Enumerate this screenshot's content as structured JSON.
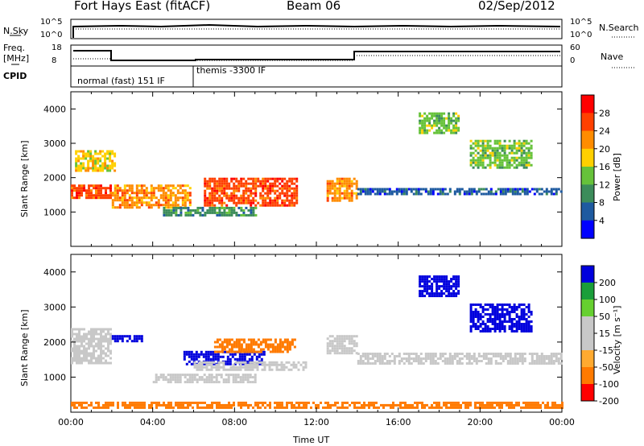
{
  "header": {
    "station": "Fort Hays East (fitACF)",
    "beam": "Beam 06",
    "date": "02/Sep/2012"
  },
  "panels": {
    "nsky_label": "N.Sky",
    "nsky_ticks": [
      "10^5",
      "10^0"
    ],
    "nsearch_label": "N.Search",
    "nsearch_ticks": [
      "10^5",
      "10^0"
    ],
    "freq_label_1": "Freq.",
    "freq_label_2": "[MHz]",
    "freq_ticks": [
      "18",
      "8"
    ],
    "nave_label": "Nave",
    "nave_ticks": [
      "60",
      "0"
    ],
    "cpid_label": "CPID",
    "cpid_entries": [
      "normal (fast) 151 IF",
      "themis -3300 IF"
    ]
  },
  "colors": {
    "power_scale": [
      "#0000ff",
      "#1e5aa0",
      "#3c8c5a",
      "#66c23a",
      "#ffd000",
      "#ff8c00",
      "#ff4000",
      "#ff0000"
    ],
    "velocity_scale": [
      "#0000dd",
      "#1a9e3a",
      "#66d030",
      "#c8c8c8",
      "#c8c8c8",
      "#ffaa30",
      "#ff7a00",
      "#ff0000"
    ]
  },
  "chart_data": [
    {
      "type": "heatmap",
      "name": "power",
      "ylabel": "Slant Range [km]",
      "xlabel": "",
      "xlim": [
        "00:00",
        "24:00"
      ],
      "ylim": [
        0,
        4500
      ],
      "yticks": [
        "4000",
        "3000",
        "2000",
        "1000"
      ],
      "ytick_values": [
        4000,
        3000,
        2000,
        1000
      ],
      "colorbar_label": "Power [dB]",
      "colorbar_ticks": [
        "28",
        "24",
        "20",
        "16",
        "12",
        "8",
        "4"
      ],
      "regions": [
        {
          "t0": 0.0,
          "t1": 2.0,
          "r0": 1400,
          "r1": 1800,
          "value": 26
        },
        {
          "t0": 0.2,
          "t1": 2.2,
          "r0": 2200,
          "r1": 2800,
          "value": 18
        },
        {
          "t0": 2.0,
          "t1": 5.8,
          "r0": 1100,
          "r1": 1800,
          "value": 24
        },
        {
          "t0": 6.5,
          "t1": 11.0,
          "r0": 1200,
          "r1": 2000,
          "value": 26
        },
        {
          "t0": 4.5,
          "t1": 9.0,
          "r0": 900,
          "r1": 1150,
          "value": 10
        },
        {
          "t0": 12.5,
          "t1": 14.0,
          "r0": 1300,
          "r1": 2000,
          "value": 22
        },
        {
          "t0": 14.0,
          "t1": 24.0,
          "r0": 1500,
          "r1": 1700,
          "value": 8
        },
        {
          "t0": 19.5,
          "t1": 22.5,
          "r0": 2300,
          "r1": 3100,
          "value": 16
        },
        {
          "t0": 17.0,
          "t1": 19.0,
          "r0": 3300,
          "r1": 3900,
          "value": 14
        }
      ]
    },
    {
      "type": "heatmap",
      "name": "velocity",
      "ylabel": "Slant Range [km]",
      "xlabel": "Time UT",
      "xlim": [
        "00:00",
        "24:00"
      ],
      "ylim": [
        0,
        4500
      ],
      "yticks": [
        "4000",
        "3000",
        "2000",
        "1000"
      ],
      "ytick_values": [
        4000,
        3000,
        2000,
        1000
      ],
      "xticks": [
        "00:00",
        "04:00",
        "08:00",
        "12:00",
        "16:00",
        "20:00",
        "00:00"
      ],
      "xtick_values": [
        0,
        4,
        8,
        12,
        16,
        20,
        24
      ],
      "colorbar_label": "Velocity [m s⁻¹]",
      "colorbar_ticks": [
        "200",
        "100",
        "50",
        "15",
        "-15",
        "-50",
        "-100",
        "-200"
      ],
      "regions": [
        {
          "t0": 0.0,
          "t1": 2.0,
          "r0": 1400,
          "r1": 2400,
          "value": 0
        },
        {
          "t0": 2.0,
          "t1": 3.5,
          "r0": 2000,
          "r1": 2200,
          "value": 220
        },
        {
          "t0": 5.5,
          "t1": 9.5,
          "r0": 1400,
          "r1": 1750,
          "value": 220
        },
        {
          "t0": 7.0,
          "t1": 11.0,
          "r0": 1700,
          "r1": 2100,
          "value": -80
        },
        {
          "t0": 6.0,
          "t1": 11.5,
          "r0": 1200,
          "r1": 1450,
          "value": 40
        },
        {
          "t0": 4.0,
          "t1": 9.0,
          "r0": 850,
          "r1": 1100,
          "value": 40
        },
        {
          "t0": 12.5,
          "t1": 14.0,
          "r0": 1700,
          "r1": 2200,
          "value": 0
        },
        {
          "t0": 14.0,
          "t1": 24.0,
          "r0": 1400,
          "r1": 1700,
          "value": 0
        },
        {
          "t0": 19.5,
          "t1": 22.5,
          "r0": 2300,
          "r1": 3100,
          "value": 220
        },
        {
          "t0": 17.0,
          "t1": 19.0,
          "r0": 3300,
          "r1": 3900,
          "value": 220
        },
        {
          "t0": 0.0,
          "t1": 24.0,
          "r0": 100,
          "r1": 300,
          "value": -90
        }
      ]
    }
  ]
}
